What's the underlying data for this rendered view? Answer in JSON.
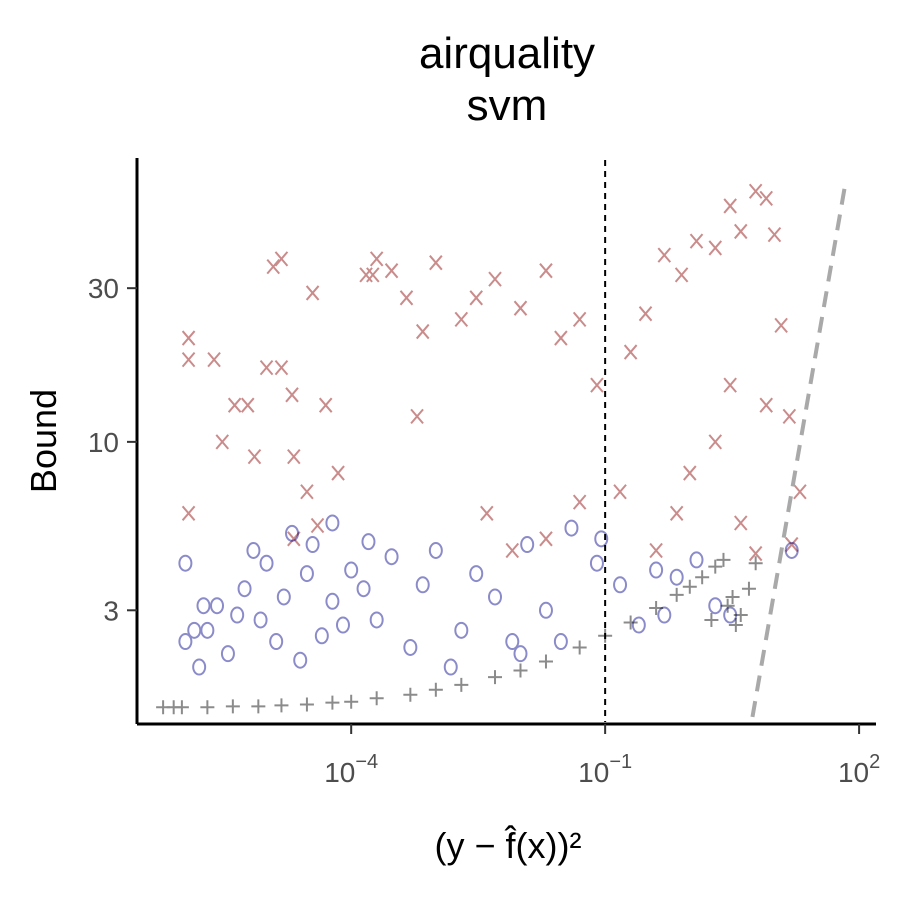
{
  "chart_data": {
    "type": "scatter",
    "title_lines": [
      "airquality",
      "svm"
    ],
    "xlabel": "(y − f̂(x))²",
    "ylabel": "Bound",
    "x_scale": "log10",
    "y_scale": "log10",
    "xlim": [
      3.2e-07,
      150
    ],
    "ylim": [
      1.35,
      75
    ],
    "x_ticks": [
      {
        "value": 0.0001,
        "base": "10",
        "exp": "−4"
      },
      {
        "value": 0.1,
        "base": "10",
        "exp": "−1"
      },
      {
        "value": 100,
        "base": "10",
        "exp": "2"
      }
    ],
    "y_ticks": [
      {
        "value": 3,
        "label": "3"
      },
      {
        "value": 10,
        "label": "10"
      },
      {
        "value": 30,
        "label": "30"
      }
    ],
    "grid": false,
    "legend": "none",
    "reference_lines": {
      "vertical_dashed_x": 0.1,
      "diagonal_dashed": [
        [
          5.5,
          1.4
        ],
        [
          70,
          65
        ]
      ]
    },
    "series": [
      {
        "marker": "x",
        "color": "#8b0000",
        "opacity": 0.45,
        "points": [
          [
            1.2e-06,
            21
          ],
          [
            1.2e-06,
            18
          ],
          [
            2.4e-06,
            18
          ],
          [
            1.2e-06,
            6
          ],
          [
            3e-06,
            10
          ],
          [
            4.2e-06,
            13
          ],
          [
            6e-06,
            13
          ],
          [
            7.2e-06,
            9
          ],
          [
            1e-05,
            17
          ],
          [
            1.2e-05,
            35
          ],
          [
            1.5e-05,
            37
          ],
          [
            2e-05,
            14
          ],
          [
            1.5e-05,
            17
          ],
          [
            2.1e-05,
            9
          ],
          [
            3e-05,
            7
          ],
          [
            4e-05,
            5.5
          ],
          [
            2.1e-05,
            5
          ],
          [
            3.5e-05,
            29
          ],
          [
            5e-05,
            13
          ],
          [
            7e-05,
            8
          ],
          [
            0.00015,
            33
          ],
          [
            0.00018,
            33
          ],
          [
            0.0002,
            37
          ],
          [
            0.0003,
            34
          ],
          [
            0.00045,
            28
          ],
          [
            0.0007,
            22
          ],
          [
            0.0006,
            12
          ],
          [
            0.001,
            36
          ],
          [
            0.002,
            24
          ],
          [
            0.003,
            28
          ],
          [
            0.005,
            32
          ],
          [
            0.01,
            26
          ],
          [
            0.02,
            34
          ],
          [
            0.03,
            21
          ],
          [
            0.05,
            24
          ],
          [
            0.08,
            15
          ],
          [
            0.2,
            19
          ],
          [
            0.3,
            25
          ],
          [
            0.5,
            38
          ],
          [
            0.8,
            33
          ],
          [
            1.2,
            42
          ],
          [
            2.0,
            40
          ],
          [
            3.0,
            54
          ],
          [
            4.0,
            45
          ],
          [
            6.0,
            60
          ],
          [
            8.0,
            57
          ],
          [
            10.0,
            44
          ],
          [
            12.0,
            23
          ],
          [
            15.0,
            12
          ],
          [
            8.0,
            13
          ],
          [
            3.0,
            15
          ],
          [
            2.0,
            10
          ],
          [
            1.0,
            8
          ],
          [
            0.7,
            6
          ],
          [
            0.4,
            4.6
          ],
          [
            0.15,
            7
          ],
          [
            0.05,
            6.5
          ],
          [
            0.02,
            5
          ],
          [
            0.008,
            4.6
          ],
          [
            0.004,
            6
          ],
          [
            20.0,
            7
          ],
          [
            16.0,
            4.8
          ],
          [
            6.0,
            4.5
          ],
          [
            4.0,
            5.6
          ]
        ]
      },
      {
        "marker": "o",
        "color": "#00008b",
        "opacity": 0.45,
        "points": [
          [
            1.1e-06,
            4.2
          ],
          [
            1.1e-06,
            2.4
          ],
          [
            1.4e-06,
            2.6
          ],
          [
            1.6e-06,
            2.0
          ],
          [
            1.8e-06,
            3.1
          ],
          [
            2.6e-06,
            3.1
          ],
          [
            2e-06,
            2.6
          ],
          [
            3.5e-06,
            2.2
          ],
          [
            4.5e-06,
            2.9
          ],
          [
            5.5e-06,
            3.5
          ],
          [
            7e-06,
            4.6
          ],
          [
            8.5e-06,
            2.8
          ],
          [
            1e-05,
            4.2
          ],
          [
            1.3e-05,
            2.4
          ],
          [
            1.6e-05,
            3.3
          ],
          [
            2e-05,
            5.2
          ],
          [
            2.5e-05,
            2.1
          ],
          [
            3e-05,
            3.9
          ],
          [
            3.5e-05,
            4.8
          ],
          [
            4.5e-05,
            2.5
          ],
          [
            6e-05,
            3.2
          ],
          [
            8e-05,
            2.7
          ],
          [
            0.0001,
            4.0
          ],
          [
            0.00014,
            3.5
          ],
          [
            0.0002,
            2.8
          ],
          [
            0.0003,
            4.4
          ],
          [
            0.0005,
            2.3
          ],
          [
            0.0007,
            3.6
          ],
          [
            0.001,
            4.6
          ],
          [
            0.002,
            2.6
          ],
          [
            0.003,
            3.9
          ],
          [
            0.005,
            3.3
          ],
          [
            0.008,
            2.4
          ],
          [
            0.012,
            4.8
          ],
          [
            0.02,
            3.0
          ],
          [
            0.04,
            5.4
          ],
          [
            0.08,
            4.2
          ],
          [
            0.15,
            3.6
          ],
          [
            0.25,
            2.7
          ],
          [
            0.4,
            4.0
          ],
          [
            0.7,
            3.8
          ],
          [
            1.2,
            4.3
          ],
          [
            2.0,
            3.1
          ],
          [
            3.0,
            2.9
          ],
          [
            16.0,
            4.6
          ],
          [
            6e-05,
            5.6
          ],
          [
            0.00016,
            4.9
          ],
          [
            0.09,
            5.0
          ],
          [
            0.01,
            2.2
          ],
          [
            0.0015,
            2.0
          ],
          [
            0.03,
            2.4
          ],
          [
            0.5,
            2.9
          ]
        ]
      },
      {
        "marker": "+",
        "color": "#000000",
        "opacity": 0.45,
        "points": [
          [
            6e-07,
            1.5
          ],
          [
            8e-07,
            1.5
          ],
          [
            1e-06,
            1.5
          ],
          [
            2e-06,
            1.5
          ],
          [
            4e-06,
            1.51
          ],
          [
            8e-06,
            1.51
          ],
          [
            1.5e-05,
            1.52
          ],
          [
            3e-05,
            1.53
          ],
          [
            6e-05,
            1.55
          ],
          [
            0.0001,
            1.56
          ],
          [
            0.0002,
            1.6
          ],
          [
            0.0005,
            1.64
          ],
          [
            0.001,
            1.7
          ],
          [
            0.002,
            1.76
          ],
          [
            0.005,
            1.86
          ],
          [
            0.01,
            1.95
          ],
          [
            0.02,
            2.08
          ],
          [
            0.05,
            2.3
          ],
          [
            0.1,
            2.5
          ],
          [
            0.2,
            2.75
          ],
          [
            0.4,
            3.05
          ],
          [
            0.7,
            3.35
          ],
          [
            1.0,
            3.55
          ],
          [
            1.4,
            3.8
          ],
          [
            2.0,
            4.1
          ],
          [
            2.5,
            4.3
          ],
          [
            3.2,
            3.3
          ],
          [
            4.0,
            2.9
          ],
          [
            3.5,
            2.7
          ],
          [
            2.8,
            3.1
          ],
          [
            5.0,
            3.5
          ],
          [
            6.0,
            4.2
          ],
          [
            1.8,
            2.8
          ]
        ]
      }
    ]
  }
}
